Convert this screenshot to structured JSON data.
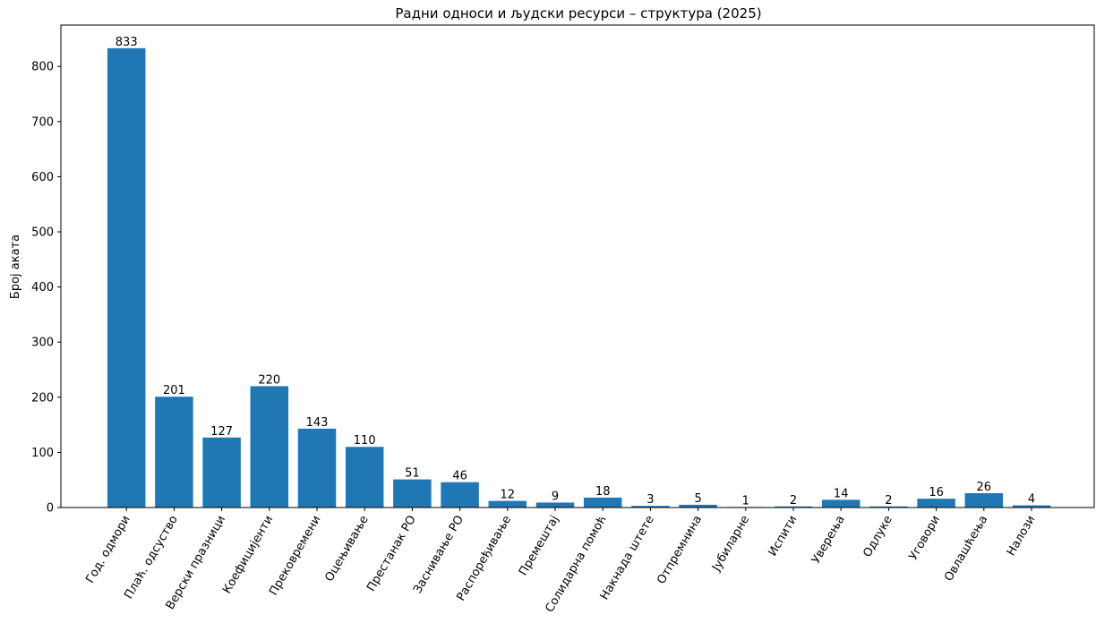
{
  "chart_data": {
    "type": "bar",
    "title": "Радни односи и људски ресурси – структура (2025)",
    "xlabel": "",
    "ylabel": "Број аката",
    "ylim": [
      0,
      875
    ],
    "yticks": [
      0,
      100,
      200,
      300,
      400,
      500,
      600,
      700,
      800
    ],
    "grid": false,
    "bar_color": "#1f77b4",
    "categories": [
      "Год. одмори",
      "Плаћ. одсуство",
      "Верски празници",
      "Коефицијенти",
      "Прековремени",
      "Оцењивање",
      "Престанак РО",
      "Заснивање РО",
      "Распоређивање",
      "Премештај",
      "Солидарна помоћ",
      "Накнада штете",
      "Отпремнина",
      "Јубиларне",
      "Испити",
      "Уверења",
      "Одлуке",
      "Уговори",
      "Овлашћења",
      "Налози"
    ],
    "values": [
      833,
      201,
      127,
      220,
      143,
      110,
      51,
      46,
      12,
      9,
      18,
      3,
      5,
      1,
      2,
      14,
      2,
      16,
      26,
      4
    ]
  }
}
